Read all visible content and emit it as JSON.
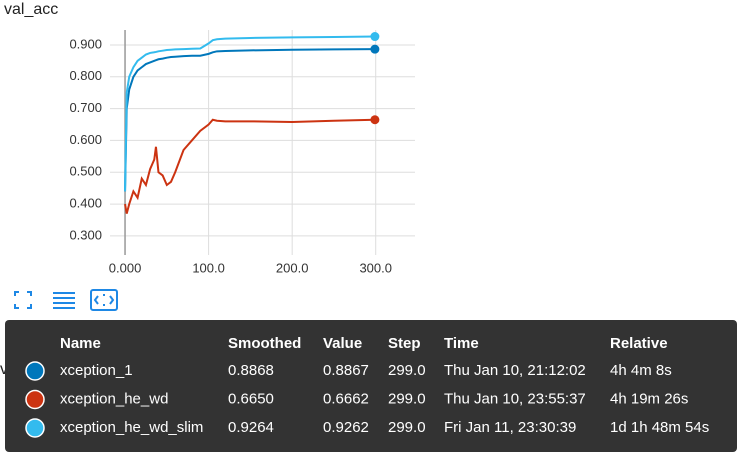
{
  "chart_data": {
    "type": "line",
    "title": "val_acc",
    "x": [
      0,
      2,
      5,
      10,
      15,
      20,
      25,
      30,
      35,
      37,
      40,
      45,
      50,
      55,
      60,
      70,
      80,
      90,
      100,
      105,
      110,
      120,
      150,
      200,
      250,
      299
    ],
    "series": [
      {
        "name": "xception_1",
        "color": "#0077bb",
        "values": [
          0.44,
          0.7,
          0.76,
          0.8,
          0.82,
          0.83,
          0.84,
          0.845,
          0.85,
          0.852,
          0.855,
          0.857,
          0.86,
          0.862,
          0.863,
          0.865,
          0.866,
          0.866,
          0.872,
          0.877,
          0.88,
          0.881,
          0.883,
          0.885,
          0.886,
          0.8868
        ]
      },
      {
        "name": "xception_he_wd",
        "color": "#cc3311",
        "values": [
          0.4,
          0.37,
          0.4,
          0.44,
          0.42,
          0.48,
          0.46,
          0.51,
          0.54,
          0.58,
          0.5,
          0.49,
          0.46,
          0.47,
          0.5,
          0.57,
          0.6,
          0.63,
          0.65,
          0.665,
          0.662,
          0.66,
          0.66,
          0.658,
          0.662,
          0.665
        ]
      },
      {
        "name": "xception_he_wd_slim",
        "color": "#33bbee",
        "values": [
          0.44,
          0.75,
          0.8,
          0.83,
          0.85,
          0.86,
          0.87,
          0.875,
          0.877,
          0.878,
          0.88,
          0.882,
          0.884,
          0.885,
          0.886,
          0.887,
          0.888,
          0.889,
          0.905,
          0.915,
          0.918,
          0.92,
          0.922,
          0.924,
          0.925,
          0.9264
        ]
      }
    ],
    "xlim": [
      -18,
      347
    ],
    "ylim": [
      0.24,
      0.947
    ],
    "xticks": [
      {
        "value": 0,
        "label": "0.000"
      },
      {
        "value": 100,
        "label": "100.0"
      },
      {
        "value": 200,
        "label": "200.0"
      },
      {
        "value": 300,
        "label": "300.0"
      }
    ],
    "yticks": [
      {
        "value": 0.3,
        "label": "0.300"
      },
      {
        "value": 0.4,
        "label": "0.400"
      },
      {
        "value": 0.5,
        "label": "0.500"
      },
      {
        "value": 0.6,
        "label": "0.600"
      },
      {
        "value": 0.7,
        "label": "0.700"
      },
      {
        "value": 0.8,
        "label": "0.800"
      },
      {
        "value": 0.9,
        "label": "0.900"
      }
    ],
    "grid": true
  },
  "next_chart_title": "val_loss",
  "tooltip": {
    "headers": [
      "Name",
      "Smoothed",
      "Value",
      "Step",
      "Time",
      "Relative"
    ],
    "rows": [
      [
        "0.8868",
        "0.8867",
        "299.0",
        "Thu Jan 10, 21:12:02",
        "4h 4m 8s"
      ],
      [
        "0.6650",
        "0.6662",
        "299.0",
        "Thu Jan 10, 23:55:37",
        "4h 19m 26s"
      ],
      [
        "0.9264",
        "0.9262",
        "299.0",
        "Fri Jan 11, 23:30:39",
        "1d 1h 48m 54s"
      ]
    ]
  }
}
